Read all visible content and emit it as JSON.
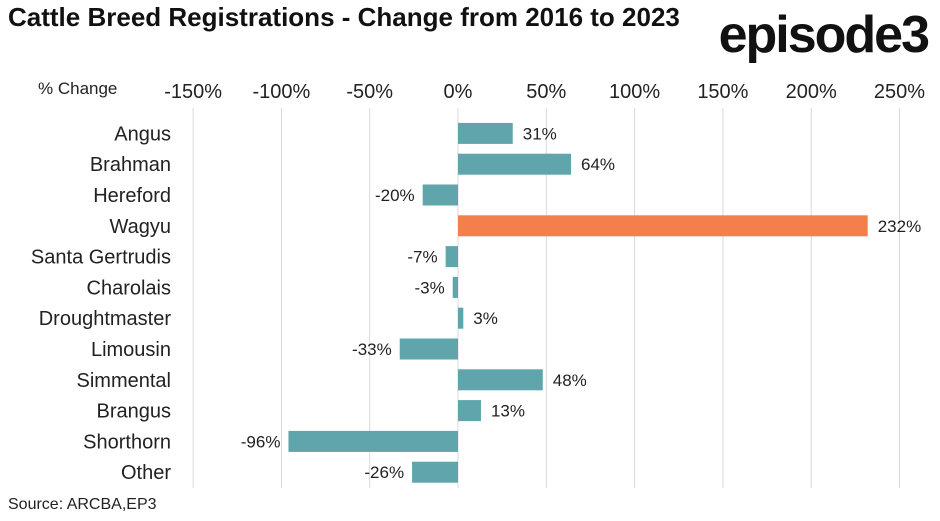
{
  "header": {
    "title": "Cattle Breed Registrations - Change from 2016 to 2023",
    "logo_text": "episode3"
  },
  "footer": {
    "source": "Source: ARCBA,EP3"
  },
  "chart_data": {
    "type": "bar",
    "orientation": "horizontal",
    "title": "Cattle Breed Registrations - Change from 2016 to 2023",
    "xlabel": "% Change",
    "ylabel": "",
    "xlim": [
      -150,
      250
    ],
    "x_ticks": [
      -150,
      -100,
      -50,
      0,
      50,
      100,
      150,
      200,
      250
    ],
    "x_tick_labels": [
      "-150%",
      "-100%",
      "-50%",
      "0%",
      "50%",
      "100%",
      "150%",
      "200%",
      "250%"
    ],
    "axis_position": "top",
    "grid": true,
    "categories": [
      "Angus",
      "Brahman",
      "Hereford",
      "Wagyu",
      "Santa Gertrudis",
      "Charolais",
      "Droughtmaster",
      "Limousin",
      "Simmental",
      "Brangus",
      "Shorthorn",
      "Other"
    ],
    "values": [
      31,
      64,
      -20,
      232,
      -7,
      -3,
      3,
      -33,
      48,
      13,
      -96,
      -26
    ],
    "data_labels": [
      "31%",
      "64%",
      "-20%",
      "232%",
      "-7%",
      "-3%",
      "3%",
      "-33%",
      "48%",
      "13%",
      "-96%",
      "-26%"
    ],
    "colors": {
      "default": "#5fa5ab",
      "highlight": "#f47f4c",
      "highlight_category": "Wagyu",
      "grid": "#d9d9d9"
    }
  }
}
